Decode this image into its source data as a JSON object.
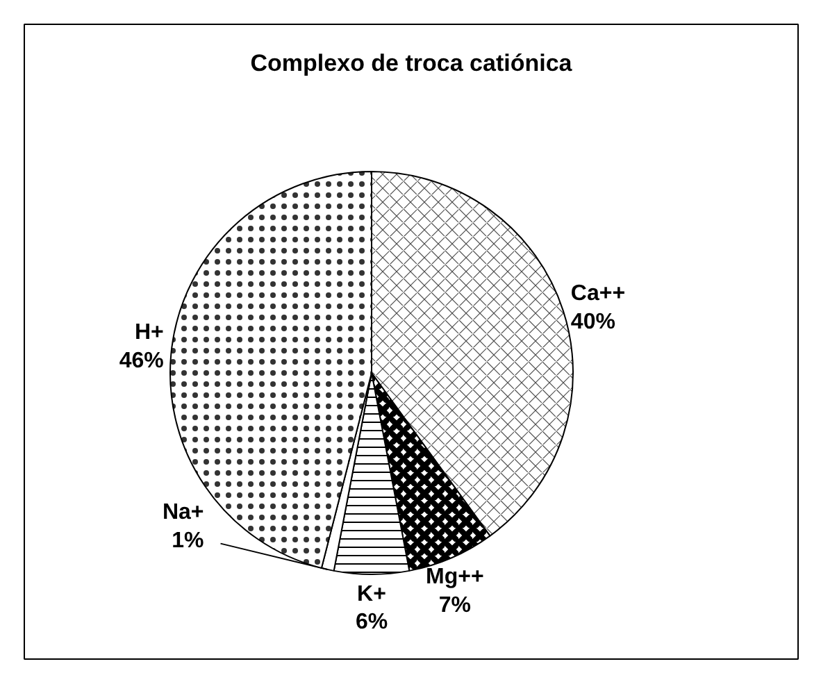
{
  "chart_data": {
    "type": "pie",
    "title": "Complexo de troca catiónica",
    "categories": [
      "Ca++",
      "Mg++",
      "K+",
      "Na+",
      "H+"
    ],
    "values": [
      40,
      7,
      6,
      1,
      46
    ],
    "value_labels": [
      "40%",
      "7%",
      "6%",
      "1%",
      "46%"
    ],
    "colors": [
      "#ffffff",
      "#ffffff",
      "#ffffff",
      "#ffffff",
      "#ffffff"
    ]
  }
}
